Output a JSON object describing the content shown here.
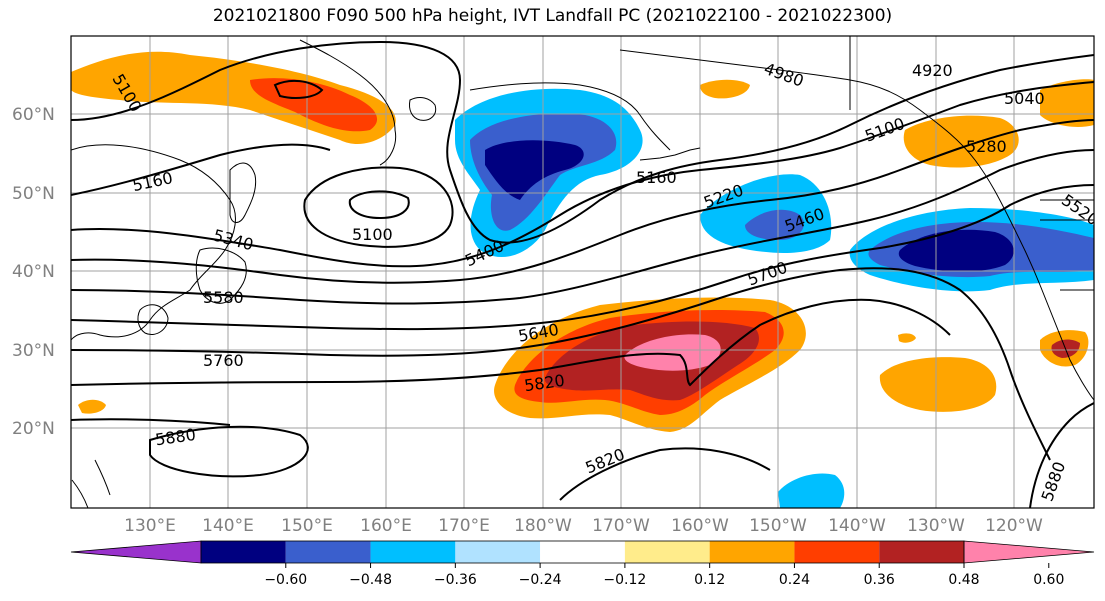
{
  "title": "2021021800 F090 500 hPa height, IVT Landfall PC (2021022100 - 2021022300)",
  "lat_labels": [
    "60°N",
    "50°N",
    "40°N",
    "30°N",
    "20°N"
  ],
  "lon_labels": [
    "130°E",
    "140°E",
    "150°E",
    "160°E",
    "170°E",
    "180°W",
    "170°W",
    "160°W",
    "150°W",
    "140°W",
    "130°W",
    "120°W"
  ],
  "contour_labels": [
    "5100",
    "5160",
    "5100",
    "5340",
    "5400",
    "5580",
    "5640",
    "5760",
    "5820",
    "5880",
    "5820",
    "5160",
    "5220",
    "5460",
    "5700",
    "4980",
    "4920",
    "5040",
    "5100",
    "5280",
    "5520",
    "5880"
  ],
  "colorbar": {
    "colors": [
      "#9932cc",
      "#000080",
      "#3a5fcd",
      "#00bfff",
      "#b0e2ff",
      "#ffffff",
      "#ffec8b",
      "#ffa500",
      "#ff3e00",
      "#b22222",
      "#ff82ab"
    ],
    "tick_labels": [
      "−0.60",
      "−0.48",
      "−0.36",
      "−0.24",
      "−0.12",
      "0.12",
      "0.24",
      "0.36",
      "0.48",
      "0.60"
    ]
  }
}
